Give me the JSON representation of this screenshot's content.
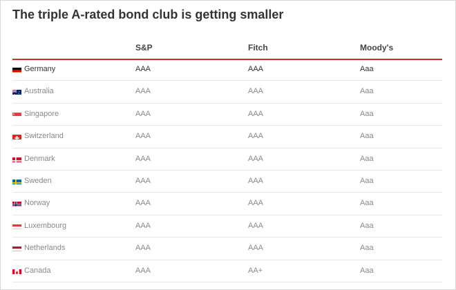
{
  "title": "The triple A-rated bond club is getting smaller",
  "columns": [
    "S&P",
    "Fitch",
    "Moody's"
  ],
  "rows": [
    {
      "country": "Germany",
      "flag": "germany-flag-icon",
      "sp": "AAA",
      "fitch": "AAA",
      "moodys": "Aaa"
    },
    {
      "country": "Australia",
      "flag": "australia-flag-icon",
      "sp": "AAA",
      "fitch": "AAA",
      "moodys": "Aaa"
    },
    {
      "country": "Singapore",
      "flag": "singapore-flag-icon",
      "sp": "AAA",
      "fitch": "AAA",
      "moodys": "Aaa"
    },
    {
      "country": "Switzerland",
      "flag": "switzerland-flag-icon",
      "sp": "AAA",
      "fitch": "AAA",
      "moodys": "Aaa"
    },
    {
      "country": "Denmark",
      "flag": "denmark-flag-icon",
      "sp": "AAA",
      "fitch": "AAA",
      "moodys": "Aaa"
    },
    {
      "country": "Sweden",
      "flag": "sweden-flag-icon",
      "sp": "AAA",
      "fitch": "AAA",
      "moodys": "Aaa"
    },
    {
      "country": "Norway",
      "flag": "norway-flag-icon",
      "sp": "AAA",
      "fitch": "AAA",
      "moodys": "Aaa"
    },
    {
      "country": "Luxembourg",
      "flag": "luxembourg-flag-icon",
      "sp": "AAA",
      "fitch": "AAA",
      "moodys": "Aaa"
    },
    {
      "country": "Netherlands",
      "flag": "netherlands-flag-icon",
      "sp": "AAA",
      "fitch": "AAA",
      "moodys": "Aaa"
    },
    {
      "country": "Canada",
      "flag": "canada-flag-icon",
      "sp": "AAA",
      "fitch": "AA+",
      "moodys": "Aaa"
    }
  ],
  "colors": {
    "accent_rule": "#d8262d",
    "first_row_text": "#333333",
    "other_row_text": "#888888"
  }
}
